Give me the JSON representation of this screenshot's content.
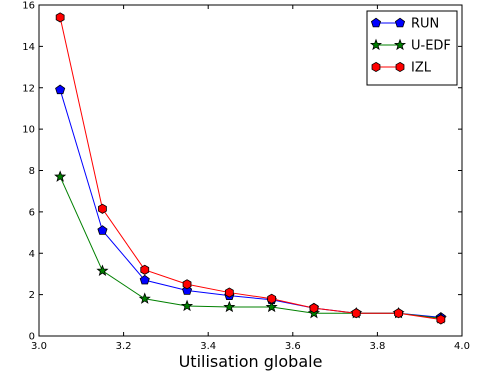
{
  "chart_data": {
    "type": "line",
    "title": "",
    "xlabel": "Utilisation globale",
    "ylabel": "",
    "xlim": [
      3.0,
      4.0
    ],
    "ylim": [
      0,
      16
    ],
    "x_ticks": [
      "3.0",
      "3.2",
      "3.4",
      "3.6",
      "3.8",
      "4.0"
    ],
    "y_ticks": [
      "0",
      "2",
      "4",
      "6",
      "8",
      "10",
      "12",
      "14",
      "16"
    ],
    "grid": false,
    "legend_position": "top-right",
    "x": [
      3.05,
      3.15,
      3.25,
      3.35,
      3.45,
      3.55,
      3.65,
      3.75,
      3.85,
      3.95
    ],
    "series": [
      {
        "name": "RUN",
        "color": "#0000ff",
        "marker": "pentagon",
        "values": [
          11.9,
          5.1,
          2.7,
          2.2,
          1.95,
          1.75,
          1.35,
          1.1,
          1.1,
          0.9
        ]
      },
      {
        "name": "U-EDF",
        "color": "#008000",
        "marker": "star",
        "values": [
          7.7,
          3.15,
          1.8,
          1.45,
          1.4,
          1.4,
          1.1,
          1.1,
          1.1,
          0.85
        ]
      },
      {
        "name": "IZL",
        "color": "#ff0000",
        "marker": "hexagon",
        "values": [
          15.4,
          6.15,
          3.2,
          2.5,
          2.1,
          1.8,
          1.35,
          1.1,
          1.1,
          0.8
        ]
      }
    ]
  }
}
